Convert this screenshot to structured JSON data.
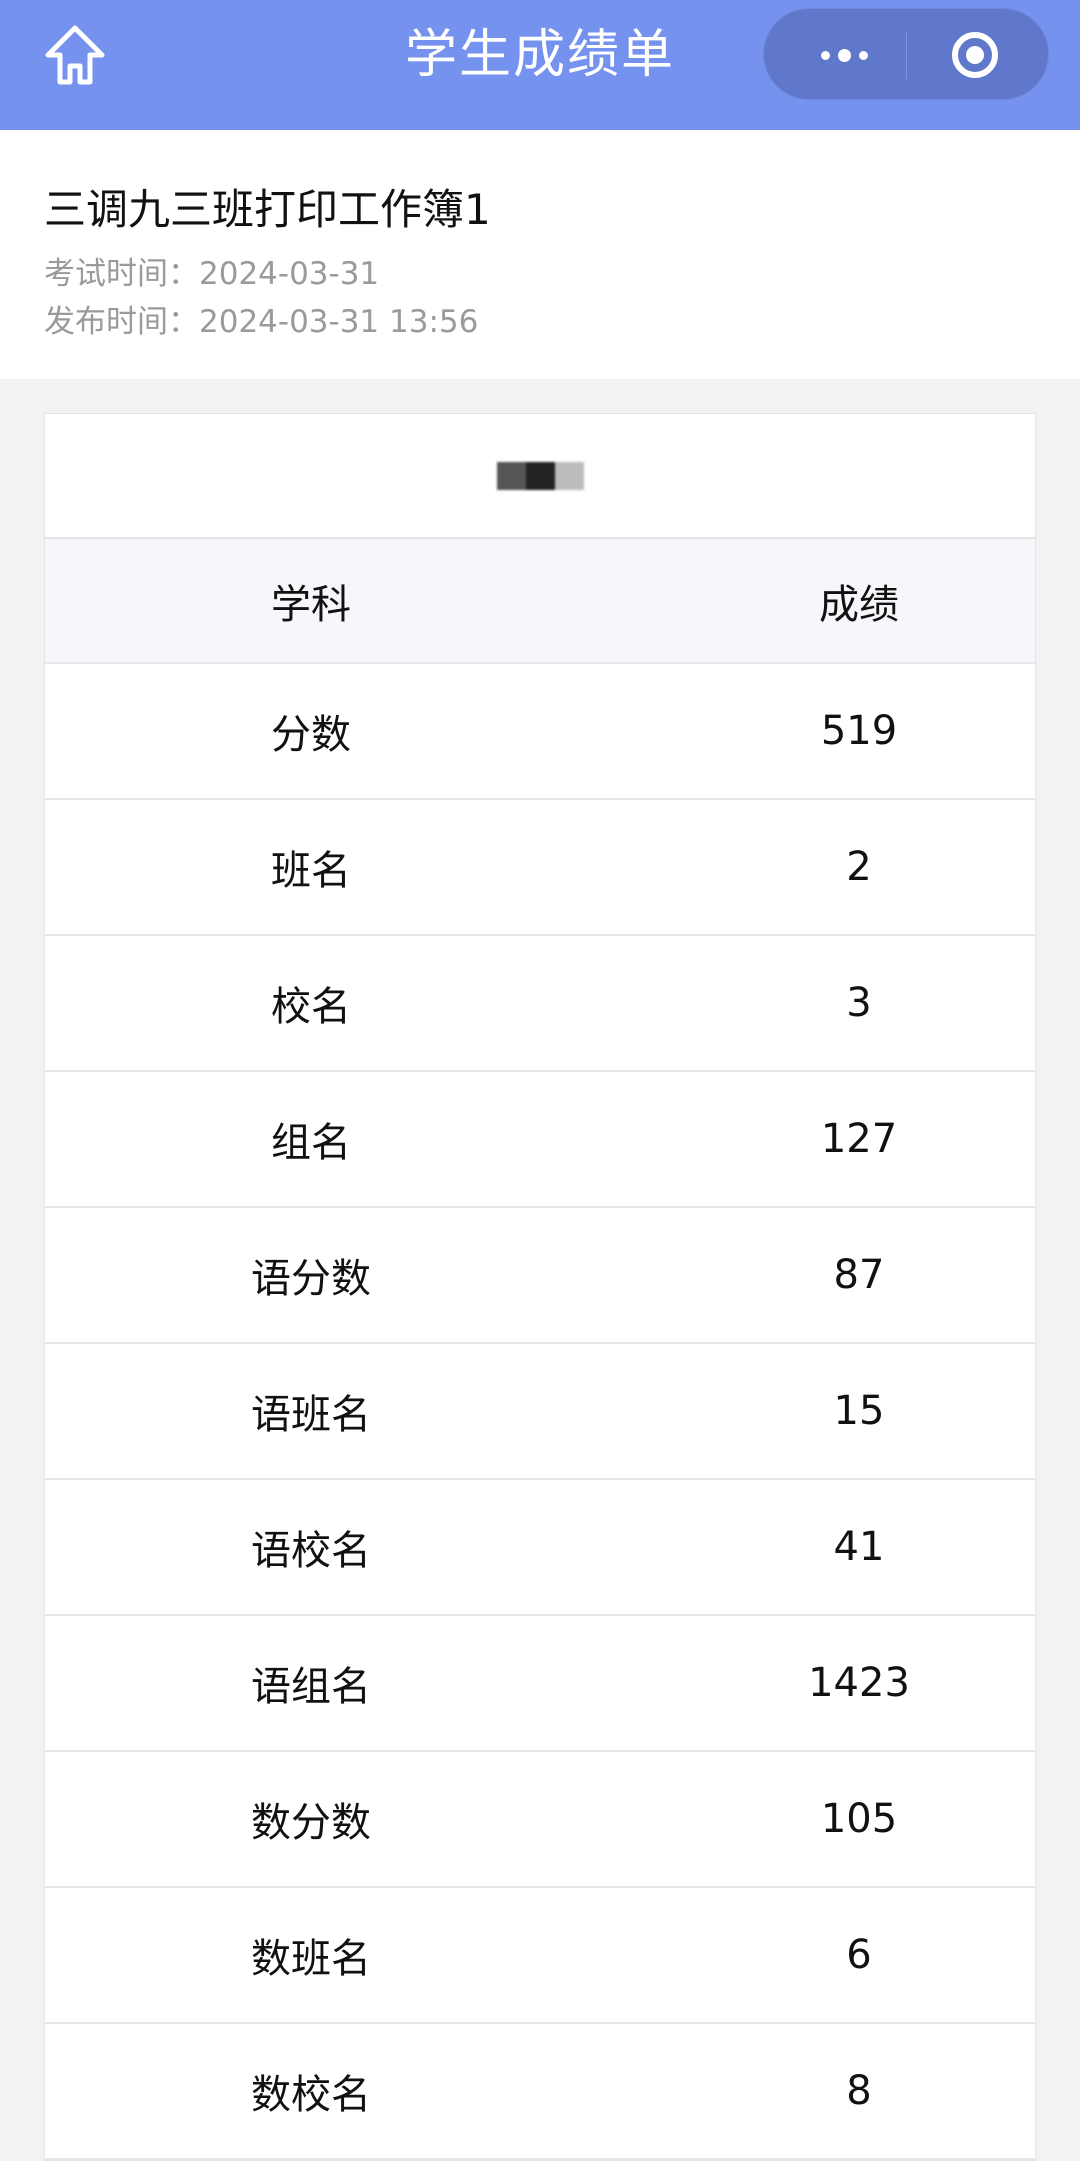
{
  "nav": {
    "title": "学生成绩单",
    "home_icon": "home-icon",
    "more_icon": "more-dots-icon",
    "close_icon": "target-circle-icon",
    "bg_color": "#7592ee"
  },
  "exam": {
    "title": "三调九三班打印工作簿1",
    "exam_time_label": "考试时间：",
    "exam_time": "2024-03-31",
    "publish_time_label": "发布时间：",
    "publish_time": "2024-03-31 13:56"
  },
  "table": {
    "headers": [
      "学科",
      "成绩"
    ],
    "rows": [
      [
        "分数",
        "519"
      ],
      [
        "班名",
        "2"
      ],
      [
        "校名",
        "3"
      ],
      [
        "组名",
        "127"
      ],
      [
        "语分数",
        "87"
      ],
      [
        "语班名",
        "15"
      ],
      [
        "语校名",
        "41"
      ],
      [
        "语组名",
        "1423"
      ],
      [
        "数分数",
        "105"
      ],
      [
        "数班名",
        "6"
      ],
      [
        "数校名",
        "8"
      ]
    ]
  }
}
